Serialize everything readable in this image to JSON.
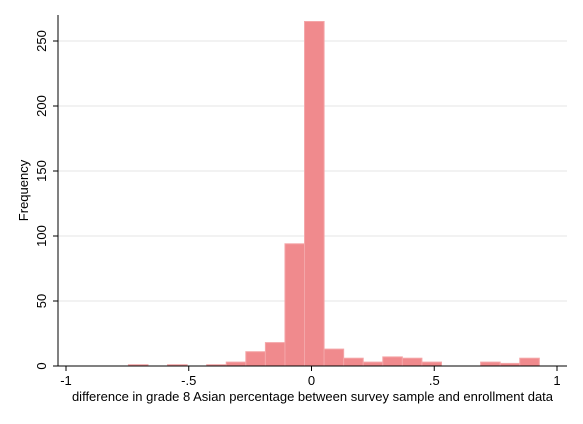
{
  "chart_data": {
    "type": "bar",
    "xlabel": "difference in grade 8 Asian percentage between survey sample and enrollment data",
    "ylabel": "Frequency",
    "xlim": [
      -1,
      1
    ],
    "ylim": [
      0,
      270
    ],
    "xticks": [
      -1,
      -0.5,
      0,
      0.5,
      1
    ],
    "xtick_labels": [
      "-1",
      "-.5",
      "0",
      ".5",
      "1"
    ],
    "yticks": [
      0,
      50,
      100,
      150,
      200,
      250
    ],
    "ytick_labels": [
      "0",
      "50",
      "100",
      "150",
      "200",
      "250"
    ],
    "grid": true,
    "bar_color": "#f08a8d",
    "bar_edge_color": "#f4a6a8",
    "bins": [
      {
        "x0": -0.9848,
        "x1": -0.9051,
        "value": 0
      },
      {
        "x0": -0.9051,
        "x1": -0.8254,
        "value": 0
      },
      {
        "x0": -0.8254,
        "x1": -0.7457,
        "value": 0
      },
      {
        "x0": -0.7457,
        "x1": -0.666,
        "value": 1
      },
      {
        "x0": -0.666,
        "x1": -0.5863,
        "value": 0
      },
      {
        "x0": -0.5863,
        "x1": -0.5066,
        "value": 1
      },
      {
        "x0": -0.5066,
        "x1": -0.4269,
        "value": 0
      },
      {
        "x0": -0.4269,
        "x1": -0.3472,
        "value": 1
      },
      {
        "x0": -0.3472,
        "x1": -0.2675,
        "value": 3
      },
      {
        "x0": -0.2675,
        "x1": -0.1878,
        "value": 11
      },
      {
        "x0": -0.1878,
        "x1": -0.1081,
        "value": 18
      },
      {
        "x0": -0.1081,
        "x1": -0.0284,
        "value": 94
      },
      {
        "x0": -0.0284,
        "x1": 0.0513,
        "value": 265
      },
      {
        "x0": 0.0513,
        "x1": 0.131,
        "value": 13
      },
      {
        "x0": 0.131,
        "x1": 0.2107,
        "value": 6
      },
      {
        "x0": 0.2107,
        "x1": 0.2904,
        "value": 3
      },
      {
        "x0": 0.2904,
        "x1": 0.3701,
        "value": 7
      },
      {
        "x0": 0.3701,
        "x1": 0.4498,
        "value": 6
      },
      {
        "x0": 0.4498,
        "x1": 0.5295,
        "value": 3
      },
      {
        "x0": 0.5295,
        "x1": 0.6092,
        "value": 0
      },
      {
        "x0": 0.6092,
        "x1": 0.6889,
        "value": 0
      },
      {
        "x0": 0.6889,
        "x1": 0.7686,
        "value": 3
      },
      {
        "x0": 0.7686,
        "x1": 0.8483,
        "value": 2
      },
      {
        "x0": 0.8483,
        "x1": 0.928,
        "value": 6
      }
    ]
  }
}
